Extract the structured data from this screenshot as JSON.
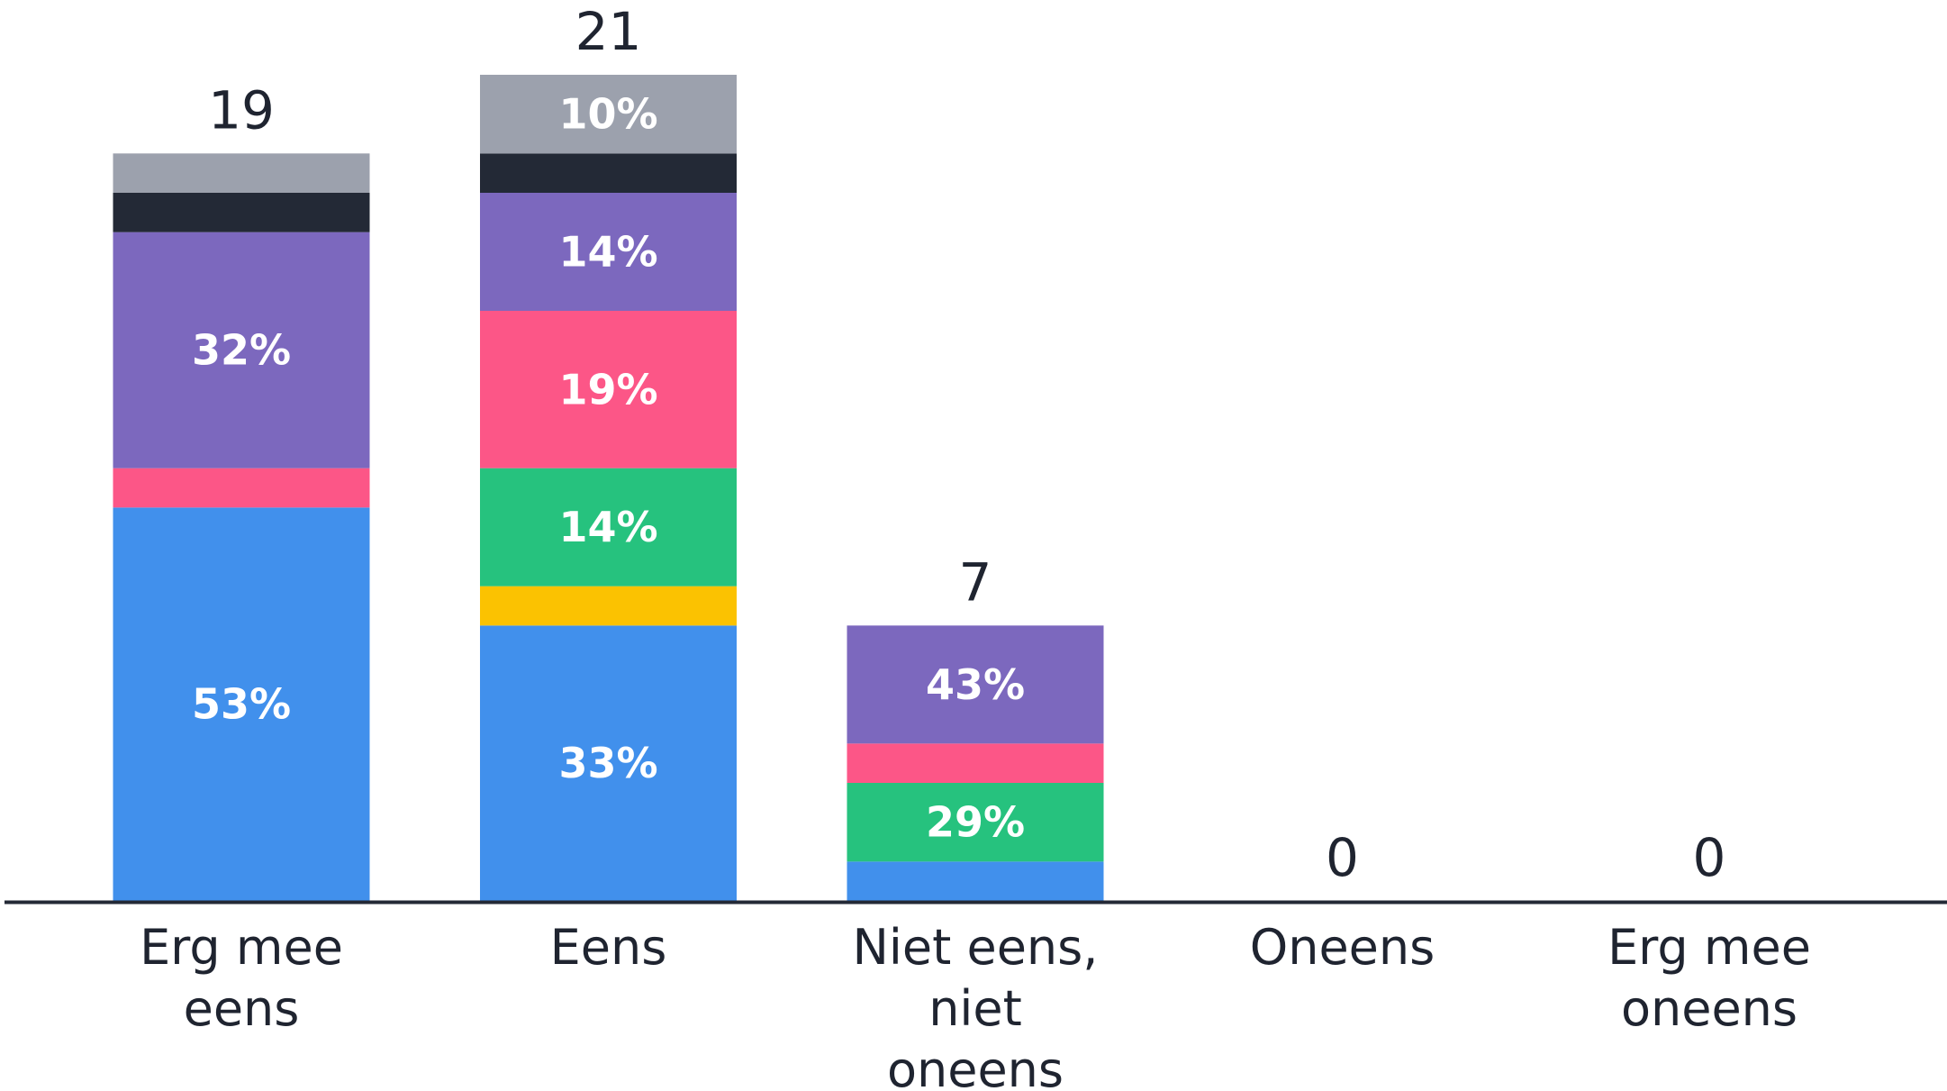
{
  "chart_data": {
    "type": "bar",
    "stacked": true,
    "categories": [
      {
        "label_lines": [
          "Erg mee",
          "eens"
        ],
        "total": 19
      },
      {
        "label_lines": [
          "Eens"
        ],
        "total": 21
      },
      {
        "label_lines": [
          "Niet eens,",
          "niet",
          "oneens"
        ],
        "total": 7
      },
      {
        "label_lines": [
          "Oneens"
        ],
        "total": 0
      },
      {
        "label_lines": [
          "Erg mee",
          "oneens"
        ],
        "total": 0
      }
    ],
    "series": [
      {
        "color": "#4190ec",
        "values": [
          10,
          7,
          1,
          0,
          0
        ],
        "labels": [
          "53%",
          "33%",
          "",
          "",
          ""
        ]
      },
      {
        "color": "#fbc201",
        "values": [
          0,
          1,
          0,
          0,
          0
        ],
        "labels": [
          "",
          "",
          "",
          "",
          ""
        ]
      },
      {
        "color": "#26c27e",
        "values": [
          0,
          3,
          2,
          0,
          0
        ],
        "labels": [
          "",
          "14%",
          "29%",
          "",
          ""
        ]
      },
      {
        "color": "#fc5687",
        "values": [
          1,
          4,
          1,
          0,
          0
        ],
        "labels": [
          "",
          "19%",
          "",
          "",
          ""
        ]
      },
      {
        "color": "#7c68be",
        "values": [
          6,
          3,
          3,
          0,
          0
        ],
        "labels": [
          "32%",
          "14%",
          "43%",
          "",
          ""
        ]
      },
      {
        "color": "#232936",
        "values": [
          1,
          1,
          0,
          0,
          0
        ],
        "labels": [
          "",
          "",
          "",
          "",
          ""
        ]
      },
      {
        "color": "#9ca1ad",
        "values": [
          1,
          2,
          0,
          0,
          0
        ],
        "labels": [
          "",
          "10%",
          "",
          "",
          ""
        ]
      }
    ],
    "ylim": [
      0,
      21
    ],
    "grid": false,
    "legend": "none",
    "colors": {
      "axis": "#232936",
      "text": "#1f2430",
      "segment_text": "#ffffff"
    }
  }
}
